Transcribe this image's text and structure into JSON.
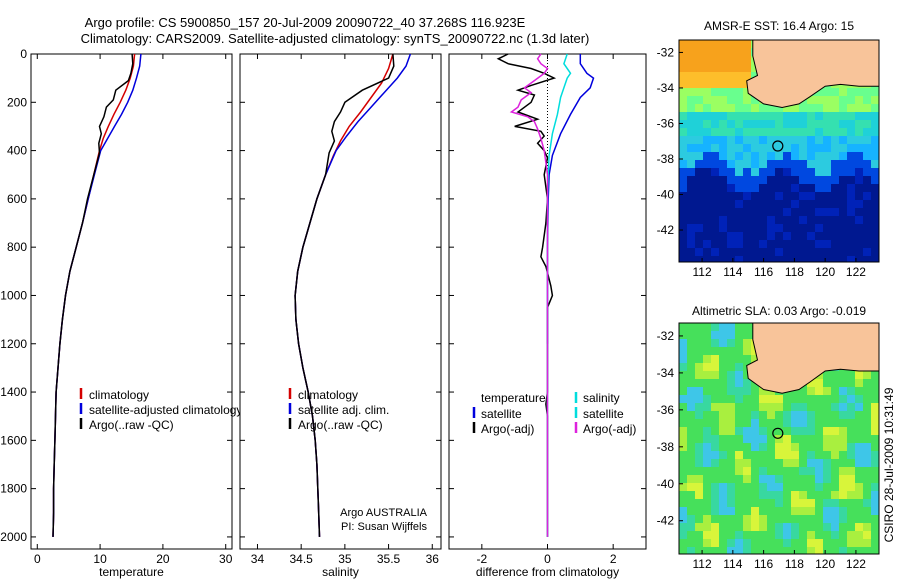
{
  "title_line1": "Argo profile: CS 5900850_157 20-Jul-2009 20090722_40 37.268S 116.923E",
  "title_line2": "Climatology: CARS2009. Satellite-adjusted climatology: synTS_20090722.nc (1.3d later)",
  "side_credit": "CSIRO 28-Jul-2009 10:31:49",
  "chart_data": [
    {
      "id": "temperature",
      "type": "line",
      "xlabel": "temperature",
      "ylabel": "",
      "xlim": [
        -1,
        31
      ],
      "ylim": [
        0,
        2050
      ],
      "y_reversed": true,
      "xticks": [
        "0",
        "10",
        "20",
        "30"
      ],
      "yticks": [
        "0",
        "200",
        "400",
        "600",
        "800",
        "1000",
        "1200",
        "1400",
        "1600",
        "1800",
        "2000"
      ],
      "legend": [
        "climatology",
        "satellite-adjusted climatology",
        "Argo(..raw -QC)"
      ],
      "series": [
        {
          "name": "climatology",
          "color": "#d40000",
          "points": [
            [
              15.5,
              0
            ],
            [
              15.3,
              50
            ],
            [
              14.8,
              100
            ],
            [
              14.1,
              150
            ],
            [
              13.2,
              200
            ],
            [
              12.2,
              250
            ],
            [
              11.3,
              300
            ],
            [
              10.5,
              350
            ],
            [
              9.9,
              400
            ],
            [
              9.0,
              500
            ],
            [
              8.1,
              600
            ],
            [
              7.2,
              700
            ],
            [
              6.2,
              800
            ],
            [
              5.2,
              900
            ],
            [
              4.5,
              1000
            ],
            [
              4.0,
              1100
            ],
            [
              3.6,
              1200
            ],
            [
              3.3,
              1300
            ],
            [
              3.0,
              1400
            ],
            [
              2.9,
              1500
            ],
            [
              2.8,
              1600
            ],
            [
              2.7,
              1700
            ],
            [
              2.6,
              1800
            ],
            [
              2.6,
              1900
            ],
            [
              2.5,
              2000
            ]
          ]
        },
        {
          "name": "satellite-adjusted climatology",
          "color": "#0000dd",
          "points": [
            [
              16.5,
              0
            ],
            [
              16.3,
              50
            ],
            [
              15.8,
              100
            ],
            [
              15.2,
              150
            ],
            [
              14.4,
              200
            ],
            [
              13.4,
              250
            ],
            [
              12.3,
              300
            ],
            [
              11.2,
              350
            ],
            [
              10.1,
              400
            ],
            [
              9.1,
              500
            ],
            [
              8.1,
              600
            ],
            [
              7.2,
              700
            ],
            [
              6.2,
              800
            ],
            [
              5.2,
              900
            ],
            [
              4.5,
              1000
            ],
            [
              4.0,
              1100
            ],
            [
              3.6,
              1200
            ],
            [
              3.3,
              1300
            ],
            [
              3.0,
              1400
            ],
            [
              2.9,
              1500
            ],
            [
              2.8,
              1600
            ],
            [
              2.7,
              1700
            ],
            [
              2.6,
              1800
            ],
            [
              2.6,
              1900
            ],
            [
              2.5,
              2000
            ]
          ]
        },
        {
          "name": "Argo(..raw -QC)",
          "color": "#000000",
          "points": [
            [
              15.1,
              0
            ],
            [
              15.2,
              40
            ],
            [
              14.9,
              80
            ],
            [
              14.5,
              110
            ],
            [
              12.5,
              150
            ],
            [
              12.1,
              190
            ],
            [
              11.0,
              220
            ],
            [
              10.6,
              260
            ],
            [
              9.9,
              300
            ],
            [
              10.2,
              330
            ],
            [
              9.8,
              370
            ],
            [
              9.9,
              410
            ],
            [
              9.0,
              500
            ],
            [
              8.0,
              600
            ],
            [
              7.2,
              700
            ],
            [
              6.2,
              800
            ],
            [
              5.2,
              900
            ],
            [
              4.5,
              1000
            ],
            [
              4.0,
              1100
            ],
            [
              3.6,
              1200
            ],
            [
              3.3,
              1300
            ],
            [
              3.0,
              1400
            ],
            [
              2.9,
              1500
            ],
            [
              2.8,
              1600
            ],
            [
              2.7,
              1700
            ],
            [
              2.6,
              1800
            ],
            [
              2.6,
              1900
            ],
            [
              2.5,
              2000
            ]
          ]
        }
      ]
    },
    {
      "id": "salinity",
      "type": "line",
      "xlabel": "salinity",
      "ylabel": "",
      "xlim": [
        33.8,
        36.1
      ],
      "ylim": [
        0,
        2050
      ],
      "y_reversed": true,
      "xticks": [
        "34",
        "34.5",
        "35",
        "35.5",
        "36"
      ],
      "legend": [
        "climatology",
        "satellite adj. clim.",
        "Argo(..raw -QC)"
      ],
      "annotation": [
        "Argo AUSTRALIA",
        "PI: Susan Wijffels"
      ],
      "series": [
        {
          "name": "climatology",
          "color": "#d40000",
          "points": [
            [
              35.55,
              0
            ],
            [
              35.5,
              60
            ],
            [
              35.42,
              120
            ],
            [
              35.3,
              180
            ],
            [
              35.18,
              240
            ],
            [
              35.05,
              300
            ],
            [
              34.95,
              360
            ],
            [
              34.87,
              420
            ],
            [
              34.78,
              500
            ],
            [
              34.68,
              600
            ],
            [
              34.6,
              700
            ],
            [
              34.52,
              800
            ],
            [
              34.46,
              900
            ],
            [
              34.43,
              1000
            ],
            [
              34.44,
              1100
            ],
            [
              34.47,
              1200
            ],
            [
              34.52,
              1300
            ],
            [
              34.58,
              1400
            ],
            [
              34.63,
              1500
            ],
            [
              34.66,
              1600
            ],
            [
              34.68,
              1700
            ],
            [
              34.69,
              1800
            ],
            [
              34.7,
              1900
            ],
            [
              34.71,
              2000
            ]
          ]
        },
        {
          "name": "satellite adj. clim.",
          "color": "#0000dd",
          "points": [
            [
              35.75,
              0
            ],
            [
              35.7,
              50
            ],
            [
              35.6,
              100
            ],
            [
              35.45,
              160
            ],
            [
              35.3,
              220
            ],
            [
              35.15,
              280
            ],
            [
              35.02,
              340
            ],
            [
              34.9,
              400
            ],
            [
              34.78,
              500
            ],
            [
              34.68,
              600
            ],
            [
              34.6,
              700
            ],
            [
              34.52,
              800
            ],
            [
              34.46,
              900
            ],
            [
              34.43,
              1000
            ],
            [
              34.44,
              1100
            ],
            [
              34.47,
              1200
            ],
            [
              34.52,
              1300
            ],
            [
              34.58,
              1400
            ],
            [
              34.63,
              1500
            ],
            [
              34.66,
              1600
            ],
            [
              34.68,
              1700
            ],
            [
              34.69,
              1800
            ],
            [
              34.7,
              1900
            ],
            [
              34.71,
              2000
            ]
          ]
        },
        {
          "name": "Argo(..raw -QC)",
          "color": "#000000",
          "points": [
            [
              35.55,
              0
            ],
            [
              35.56,
              50
            ],
            [
              35.5,
              100
            ],
            [
              35.2,
              150
            ],
            [
              35.0,
              200
            ],
            [
              34.95,
              240
            ],
            [
              34.88,
              280
            ],
            [
              34.85,
              320
            ],
            [
              34.88,
              360
            ],
            [
              34.82,
              410
            ],
            [
              34.78,
              500
            ],
            [
              34.68,
              600
            ],
            [
              34.6,
              700
            ],
            [
              34.52,
              800
            ],
            [
              34.46,
              900
            ],
            [
              34.43,
              1000
            ],
            [
              34.44,
              1100
            ],
            [
              34.47,
              1200
            ],
            [
              34.52,
              1300
            ],
            [
              34.58,
              1400
            ],
            [
              34.63,
              1500
            ],
            [
              34.66,
              1600
            ],
            [
              34.68,
              1700
            ],
            [
              34.69,
              1800
            ],
            [
              34.7,
              1900
            ],
            [
              34.71,
              2000
            ]
          ]
        }
      ]
    },
    {
      "id": "difference",
      "type": "line",
      "xlabel": "difference from climatology",
      "ylabel": "",
      "xlim": [
        -3,
        3
      ],
      "ylim": [
        0,
        2050
      ],
      "y_reversed": true,
      "xticks": [
        "-2",
        "0",
        "2"
      ],
      "legend_left": {
        "heading": "temperature",
        "items": [
          "satellite",
          "Argo(-adj)"
        ]
      },
      "legend_right": {
        "heading": "salinity",
        "items": [
          "satellite",
          "Argo(-adj)"
        ]
      },
      "series": [
        {
          "name": "temperature satellite",
          "color": "#0000dd",
          "points": [
            [
              1.0,
              0
            ],
            [
              1.0,
              40
            ],
            [
              1.2,
              80
            ],
            [
              1.4,
              100
            ],
            [
              1.3,
              140
            ],
            [
              1.0,
              180
            ],
            [
              0.7,
              250
            ],
            [
              0.4,
              330
            ],
            [
              0.15,
              420
            ],
            [
              0.05,
              500
            ],
            [
              0.02,
              600
            ],
            [
              0.0,
              800
            ],
            [
              0.0,
              1000
            ],
            [
              0.0,
              1200
            ]
          ]
        },
        {
          "name": "temperature Argo(-adj)",
          "color": "#000000",
          "points": [
            [
              -1.2,
              0
            ],
            [
              -1.5,
              20
            ],
            [
              -1.2,
              40
            ],
            [
              -0.5,
              60
            ],
            [
              -0.1,
              80
            ],
            [
              0.2,
              100
            ],
            [
              -0.5,
              130
            ],
            [
              -0.9,
              150
            ],
            [
              -0.4,
              170
            ],
            [
              -0.5,
              200
            ],
            [
              -0.9,
              240
            ],
            [
              -0.3,
              270
            ],
            [
              -1.0,
              300
            ],
            [
              -0.2,
              320
            ],
            [
              -0.1,
              340
            ],
            [
              -0.3,
              370
            ],
            [
              -0.1,
              400
            ],
            [
              0.0,
              430
            ],
            [
              -0.1,
              500
            ],
            [
              0.0,
              600
            ],
            [
              -0.05,
              700
            ],
            [
              -0.15,
              800
            ],
            [
              -0.2,
              840
            ],
            [
              -0.05,
              880
            ],
            [
              0.1,
              960
            ],
            [
              0.15,
              1000
            ],
            [
              0.0,
              1050
            ],
            [
              0.0,
              1400
            ],
            [
              -0.05,
              1450
            ],
            [
              0.0,
              1500
            ],
            [
              0.0,
              2000
            ]
          ]
        },
        {
          "name": "salinity satellite",
          "color": "#00dddd",
          "points": [
            [
              0.6,
              0
            ],
            [
              0.5,
              40
            ],
            [
              0.7,
              80
            ],
            [
              0.6,
              100
            ],
            [
              0.5,
              140
            ],
            [
              0.4,
              180
            ],
            [
              0.3,
              250
            ],
            [
              0.15,
              330
            ],
            [
              0.05,
              420
            ],
            [
              0.02,
              500
            ],
            [
              0.0,
              600
            ],
            [
              0.0,
              1000
            ],
            [
              0.0,
              1500
            ],
            [
              0.0,
              2000
            ]
          ]
        },
        {
          "name": "salinity Argo(-adj)",
          "color": "#dd22dd",
          "points": [
            [
              -0.2,
              0
            ],
            [
              -0.3,
              20
            ],
            [
              -0.2,
              40
            ],
            [
              0.0,
              60
            ],
            [
              -0.1,
              80
            ],
            [
              -0.4,
              110
            ],
            [
              -0.7,
              140
            ],
            [
              -0.5,
              160
            ],
            [
              -0.8,
              190
            ],
            [
              -0.9,
              220
            ],
            [
              -1.1,
              240
            ],
            [
              -0.6,
              260
            ],
            [
              -0.4,
              280
            ],
            [
              -0.3,
              310
            ],
            [
              -0.2,
              350
            ],
            [
              -0.1,
              400
            ],
            [
              -0.05,
              450
            ],
            [
              0.0,
              500
            ],
            [
              0.0,
              1000
            ],
            [
              0.0,
              2000
            ]
          ]
        }
      ]
    },
    {
      "id": "sst_map",
      "type": "heatmap",
      "title": "AMSR-E SST: 16.4  Argo: 15",
      "xlim": [
        110.5,
        123.5
      ],
      "ylim": [
        -43.8,
        -31.3
      ],
      "xticks": [
        "112",
        "114",
        "116",
        "118",
        "120",
        "122"
      ],
      "yticks": [
        "-32",
        "-34",
        "-36",
        "-38",
        "-40",
        "-42"
      ],
      "marker": [
        116.923,
        -37.268
      ]
    },
    {
      "id": "sla_map",
      "type": "heatmap",
      "title": "Altimetric SLA: 0.03  Argo: -0.019",
      "xlim": [
        110.5,
        123.5
      ],
      "ylim": [
        -43.8,
        -31.3
      ],
      "xticks": [
        "112",
        "114",
        "116",
        "118",
        "120",
        "122"
      ],
      "yticks": [
        "-32",
        "-34",
        "-36",
        "-38",
        "-40",
        "-42"
      ],
      "marker": [
        116.923,
        -37.268
      ]
    }
  ]
}
